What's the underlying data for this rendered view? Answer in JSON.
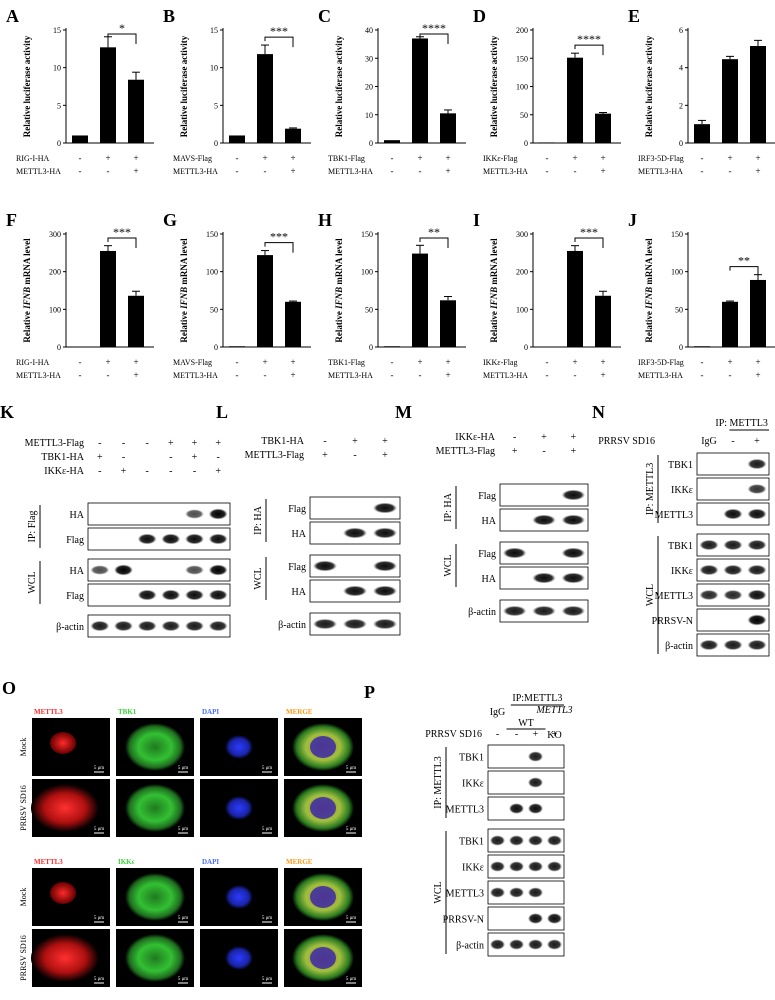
{
  "bar_charts": [
    {
      "letter": "A",
      "ylabel": "Relative luciferase activity",
      "ylabel_italic": "",
      "ymax": 15,
      "yticks": [
        0,
        5,
        10,
        15
      ],
      "values": [
        1.0,
        12.7,
        8.4
      ],
      "errors": [
        0,
        1.4,
        1.0
      ],
      "rows": [
        {
          "label": "RIG-I-HA",
          "signs": [
            "-",
            "+",
            "+"
          ]
        },
        {
          "label": "METTL3-HA",
          "signs": [
            "-",
            "-",
            "+"
          ]
        }
      ],
      "sig": "*",
      "sig_from": 1,
      "sig_to": 2
    },
    {
      "letter": "B",
      "ylabel": "Relative luciferase activity",
      "ylabel_italic": "",
      "ymax": 15,
      "yticks": [
        0,
        5,
        10,
        15
      ],
      "values": [
        1.0,
        11.8,
        1.9
      ],
      "errors": [
        0,
        1.2,
        0.1
      ],
      "rows": [
        {
          "label": "MAVS-Flag",
          "signs": [
            "-",
            "+",
            "+"
          ]
        },
        {
          "label": "METTL3-HA",
          "signs": [
            "-",
            "-",
            "+"
          ]
        }
      ],
      "sig": "***",
      "sig_from": 1,
      "sig_to": 2
    },
    {
      "letter": "C",
      "ylabel": "Relative luciferase activity",
      "ylabel_italic": "",
      "ymax": 40,
      "yticks": [
        0,
        10,
        20,
        30,
        40
      ],
      "values": [
        1.0,
        37.0,
        10.5
      ],
      "errors": [
        0,
        0.6,
        1.2
      ],
      "rows": [
        {
          "label": "TBK1-Flag",
          "signs": [
            "-",
            "+",
            "+"
          ]
        },
        {
          "label": "METTL3-HA",
          "signs": [
            "-",
            "-",
            "+"
          ]
        }
      ],
      "sig": "****",
      "sig_from": 1,
      "sig_to": 2
    },
    {
      "letter": "D",
      "ylabel": "Relative luciferase activity",
      "ylabel_italic": "",
      "ymax": 200,
      "yticks": [
        0,
        50,
        100,
        150,
        200
      ],
      "values": [
        1,
        151,
        52
      ],
      "errors": [
        0,
        8,
        2
      ],
      "rows": [
        {
          "label": "IKKε-Flag",
          "signs": [
            "-",
            "+",
            "+"
          ]
        },
        {
          "label": "METTL3-HA",
          "signs": [
            "-",
            "-",
            "+"
          ]
        }
      ],
      "sig": "****",
      "sig_from": 1,
      "sig_to": 2
    },
    {
      "letter": "E",
      "ylabel": "Relative luciferase activity",
      "ylabel_italic": "",
      "ymax": 6,
      "yticks": [
        0,
        2,
        4,
        6
      ],
      "values": [
        1.0,
        4.45,
        5.15
      ],
      "errors": [
        0.2,
        0.15,
        0.3
      ],
      "rows": [
        {
          "label": "IRF3-5D-Flag",
          "signs": [
            "-",
            "+",
            "+"
          ]
        },
        {
          "label": "METTL3-HA",
          "signs": [
            "-",
            "-",
            "+"
          ]
        }
      ],
      "sig": "",
      "sig_from": 1,
      "sig_to": 2
    },
    {
      "letter": "F",
      "ylabel": "Relative ",
      "ylabel_italic": "IFNB",
      "ylabel_tail": " mRNA level",
      "ymax": 300,
      "yticks": [
        0,
        100,
        200,
        300
      ],
      "values": [
        1,
        255,
        136
      ],
      "errors": [
        0,
        14,
        12
      ],
      "rows": [
        {
          "label": "RIG-I-HA",
          "signs": [
            "-",
            "+",
            "+"
          ]
        },
        {
          "label": "METTL3-HA",
          "signs": [
            "-",
            "-",
            "+"
          ]
        }
      ],
      "sig": "***",
      "sig_from": 1,
      "sig_to": 2
    },
    {
      "letter": "G",
      "ylabel": "Relative ",
      "ylabel_italic": "IFNB",
      "ylabel_tail": " mRNA level",
      "ymax": 150,
      "yticks": [
        0,
        50,
        100,
        150
      ],
      "values": [
        1,
        122,
        60
      ],
      "errors": [
        0,
        6,
        1
      ],
      "rows": [
        {
          "label": "MAVS-Flag",
          "signs": [
            "-",
            "+",
            "+"
          ]
        },
        {
          "label": "METTL3-HA",
          "signs": [
            "-",
            "-",
            "+"
          ]
        }
      ],
      "sig": "***",
      "sig_from": 1,
      "sig_to": 2
    },
    {
      "letter": "H",
      "ylabel": "Relative ",
      "ylabel_italic": "IFNB",
      "ylabel_tail": " mRNA level",
      "ymax": 150,
      "yticks": [
        0,
        50,
        100,
        150
      ],
      "values": [
        1,
        124,
        62
      ],
      "errors": [
        0,
        11,
        5
      ],
      "rows": [
        {
          "label": "TBK1-Flag",
          "signs": [
            "-",
            "+",
            "+"
          ]
        },
        {
          "label": "METTL3-HA",
          "signs": [
            "-",
            "-",
            "+"
          ]
        }
      ],
      "sig": "**",
      "sig_from": 1,
      "sig_to": 2
    },
    {
      "letter": "I",
      "ylabel": "Relative ",
      "ylabel_italic": "IFNB",
      "ylabel_tail": " mRNA level",
      "ymax": 300,
      "yticks": [
        0,
        100,
        200,
        300
      ],
      "values": [
        1,
        255,
        136
      ],
      "errors": [
        0,
        14,
        12
      ],
      "rows": [
        {
          "label": "IKKε-Flag",
          "signs": [
            "-",
            "+",
            "+"
          ]
        },
        {
          "label": "METTL3-HA",
          "signs": [
            "-",
            "-",
            "+"
          ]
        }
      ],
      "sig": "***",
      "sig_from": 1,
      "sig_to": 2
    },
    {
      "letter": "J",
      "ylabel": "Relative ",
      "ylabel_italic": "IFNB",
      "ylabel_tail": " mRNA level",
      "ymax": 150,
      "yticks": [
        0,
        50,
        100,
        150
      ],
      "values": [
        1,
        60,
        89
      ],
      "errors": [
        0,
        1,
        7
      ],
      "rows": [
        {
          "label": "IRF3-5D-Flag",
          "signs": [
            "-",
            "+",
            "+"
          ]
        },
        {
          "label": "METTL3-HA",
          "signs": [
            "-",
            "-",
            "+"
          ]
        }
      ],
      "sig": "**",
      "sig_from": 1,
      "sig_to": 2
    }
  ],
  "blots": [
    {
      "letter": "K",
      "lane_count": 6,
      "header": "",
      "conditions": [
        {
          "label": "METTL3-Flag",
          "signs": [
            "-",
            "-",
            "-",
            "+",
            "+",
            "+"
          ]
        },
        {
          "label": "TBK1-HA",
          "signs": [
            "+",
            "-",
            "",
            "-",
            "+",
            "-"
          ]
        },
        {
          "label": "IKKε-HA",
          "signs": [
            "-",
            "+",
            "-",
            "-",
            "-",
            "+"
          ]
        }
      ],
      "groups": [
        {
          "name": "IP: Flag",
          "bands": [
            {
              "label": "HA",
              "intensity": [
                0,
                0,
                0,
                0,
                0.7,
                1
              ]
            },
            {
              "label": "Flag",
              "intensity": [
                0,
                0,
                0.95,
                0.95,
                0.95,
                0.95
              ]
            }
          ]
        },
        {
          "name": "WCL",
          "bands": [
            {
              "label": "HA",
              "intensity": [
                0.7,
                1,
                0,
                0,
                0.7,
                1
              ]
            },
            {
              "label": "Flag",
              "intensity": [
                0,
                0,
                0.95,
                0.95,
                0.95,
                0.95
              ]
            }
          ]
        },
        {
          "name": "",
          "bands": [
            {
              "label": "β-actin",
              "intensity": [
                0.9,
                0.9,
                0.9,
                0.9,
                0.9,
                0.9
              ]
            }
          ]
        }
      ]
    },
    {
      "letter": "L",
      "lane_count": 3,
      "header": "",
      "conditions": [
        {
          "label": "TBK1-HA",
          "signs": [
            "-",
            "+",
            "+"
          ]
        },
        {
          "label": "METTL3-Flag",
          "signs": [
            "+",
            "-",
            "+"
          ]
        }
      ],
      "groups": [
        {
          "name": "IP: HA",
          "bands": [
            {
              "label": "Flag",
              "intensity": [
                0,
                0,
                0.95
              ]
            },
            {
              "label": "HA",
              "intensity": [
                0,
                0.95,
                0.95
              ]
            }
          ]
        },
        {
          "name": "WCL",
          "bands": [
            {
              "label": "Flag",
              "intensity": [
                0.95,
                0,
                0.95
              ]
            },
            {
              "label": "HA",
              "intensity": [
                0,
                0.95,
                0.95
              ]
            }
          ]
        },
        {
          "name": "",
          "bands": [
            {
              "label": "β-actin",
              "intensity": [
                0.9,
                0.9,
                0.9
              ]
            }
          ]
        }
      ]
    },
    {
      "letter": "M",
      "lane_count": 3,
      "header": "",
      "conditions": [
        {
          "label": "IKKε-HA",
          "signs": [
            "-",
            "+",
            "+"
          ]
        },
        {
          "label": "METTL3-Flag",
          "signs": [
            "+",
            "-",
            "+"
          ]
        }
      ],
      "groups": [
        {
          "name": "IP: HA",
          "bands": [
            {
              "label": "Flag",
              "intensity": [
                0,
                0,
                0.95
              ]
            },
            {
              "label": "HA",
              "intensity": [
                0,
                0.95,
                0.95
              ]
            }
          ]
        },
        {
          "name": "WCL",
          "bands": [
            {
              "label": "Flag",
              "intensity": [
                0.95,
                0,
                0.95
              ]
            },
            {
              "label": "HA",
              "intensity": [
                0,
                0.95,
                0.95
              ]
            }
          ]
        },
        {
          "name": "",
          "bands": [
            {
              "label": "β-actin",
              "intensity": [
                0.9,
                0.9,
                0.9
              ]
            }
          ]
        }
      ]
    },
    {
      "letter": "N",
      "lane_count": 3,
      "header": "IP: METTL3",
      "conditions": [
        {
          "label": "PRRSV SD16",
          "signs": [
            "IgG",
            "-",
            "+"
          ]
        }
      ],
      "groups": [
        {
          "name": "IP: METTL3",
          "bands": [
            {
              "label": "TBK1",
              "intensity": [
                0,
                0,
                0.9
              ]
            },
            {
              "label": "IKKε",
              "intensity": [
                0,
                0,
                0.8
              ]
            },
            {
              "label": "METTL3",
              "intensity": [
                0,
                0.95,
                0.95
              ]
            }
          ]
        },
        {
          "name": "WCL",
          "bands": [
            {
              "label": "TBK1",
              "intensity": [
                0.9,
                0.9,
                0.9
              ]
            },
            {
              "label": "IKKε",
              "intensity": [
                0.9,
                0.9,
                0.9
              ]
            },
            {
              "label": "METTL3",
              "intensity": [
                0.85,
                0.85,
                0.95
              ]
            },
            {
              "label": "PRRSV-N",
              "intensity": [
                0,
                0,
                1
              ]
            },
            {
              "label": "β-actin",
              "intensity": [
                0.9,
                0.9,
                0.9
              ]
            }
          ]
        }
      ]
    },
    {
      "letter": "P",
      "lane_count": 4,
      "header": "IP:METTL3",
      "sub_headers": [
        {
          "text": "IgG",
          "lanes": [
            0,
            0
          ]
        },
        {
          "text": "WT",
          "lanes": [
            1,
            2
          ]
        },
        {
          "text": "METTL3",
          "italic": true,
          "lanes": [
            3,
            3
          ]
        },
        {
          "text": "KO",
          "lanes": [
            3,
            3
          ]
        }
      ],
      "conditions": [
        {
          "label": "PRRSV SD16",
          "signs": [
            "-",
            "-",
            "+",
            "+"
          ]
        }
      ],
      "groups": [
        {
          "name": "IP: METTL3",
          "bands": [
            {
              "label": "TBK1",
              "intensity": [
                0,
                0,
                0.9,
                0
              ]
            },
            {
              "label": "IKKε",
              "intensity": [
                0,
                0,
                0.9,
                0
              ]
            },
            {
              "label": "METTL3",
              "intensity": [
                0,
                0.95,
                0.95,
                0
              ]
            }
          ]
        },
        {
          "name": "WCL",
          "bands": [
            {
              "label": "TBK1",
              "intensity": [
                0.9,
                0.9,
                0.9,
                0.9
              ]
            },
            {
              "label": "IKKε",
              "intensity": [
                0.9,
                0.9,
                0.9,
                0.9
              ]
            },
            {
              "label": "METTL3",
              "intensity": [
                0.9,
                0.9,
                0.9,
                0
              ]
            },
            {
              "label": "PRRSV-N",
              "intensity": [
                0,
                0,
                0.95,
                0.95
              ]
            },
            {
              "label": "β-actin",
              "intensity": [
                0.9,
                0.9,
                0.9,
                0.9
              ]
            }
          ]
        }
      ]
    }
  ],
  "microscopy": {
    "letter": "O",
    "scale_bar": "5 μm",
    "sets": [
      {
        "channels": [
          {
            "label": "METTL3",
            "color": "#ff2a2a"
          },
          {
            "label": "TBK1",
            "color": "#3bd23b"
          },
          {
            "label": "DAPI",
            "color": "#4a6cff"
          },
          {
            "label": "MERGE",
            "color": "#ff9a1a"
          }
        ],
        "rows": [
          "Mock",
          "PRRSV SD16"
        ]
      },
      {
        "channels": [
          {
            "label": "METTL3",
            "color": "#ff2a2a"
          },
          {
            "label": "IKKε",
            "color": "#3bd23b"
          },
          {
            "label": "DAPI",
            "color": "#4a6cff"
          },
          {
            "label": "MERGE",
            "color": "#ff9a1a"
          }
        ],
        "rows": [
          "Mock",
          "PRRSV SD16"
        ]
      }
    ]
  }
}
